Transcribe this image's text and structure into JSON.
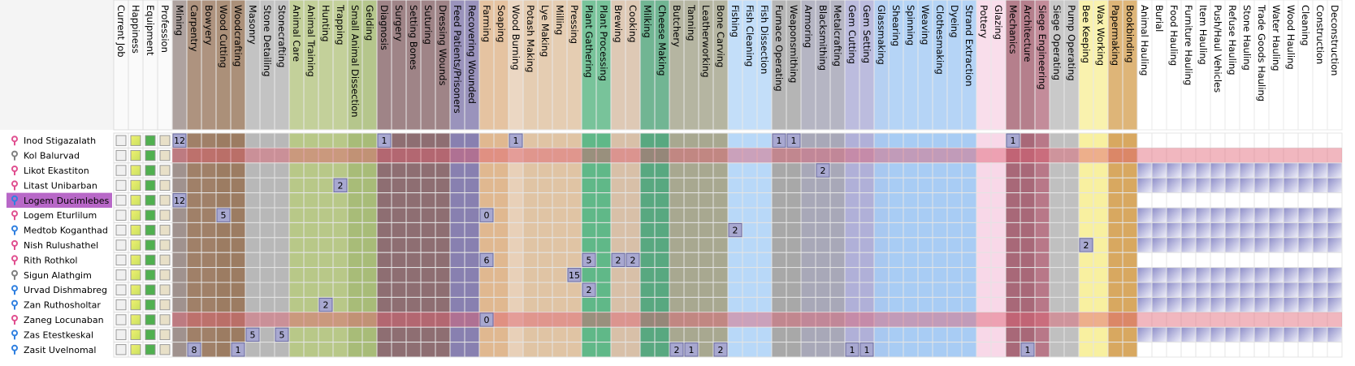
{
  "info_columns": [
    "Current Job",
    "Happiness",
    "Equipment",
    "Profession"
  ],
  "labors": [
    {
      "label": "Mining",
      "color": "#a0928e"
    },
    {
      "label": "Carpentry",
      "color": "#a08068"
    },
    {
      "label": "Bowyery",
      "color": "#a08068"
    },
    {
      "label": "Wood Cutting",
      "color": "#9c7c62"
    },
    {
      "label": "Woodcrafting",
      "color": "#9c7c62"
    },
    {
      "label": "Masonry",
      "color": "#b8b8b8"
    },
    {
      "label": "Stone Detailing",
      "color": "#b8b8b8"
    },
    {
      "label": "Stonecrafting",
      "color": "#b8b8b8"
    },
    {
      "label": "Animal Care",
      "color": "#b8c888"
    },
    {
      "label": "Animal Training",
      "color": "#b8c888"
    },
    {
      "label": "Hunting",
      "color": "#b8c888"
    },
    {
      "label": "Trapping",
      "color": "#b8c888"
    },
    {
      "label": "Small Animal Dissection",
      "color": "#a8bc78"
    },
    {
      "label": "Gelding",
      "color": "#a8bc78"
    },
    {
      "label": "Diagnosis",
      "color": "#8e6e72"
    },
    {
      "label": "Surgery",
      "color": "#8e6e72"
    },
    {
      "label": "Setting Bones",
      "color": "#8e6e72"
    },
    {
      "label": "Suturing",
      "color": "#8e6e72"
    },
    {
      "label": "Dressing Wounds",
      "color": "#8e6e72"
    },
    {
      "label": "Feed Patients/Prisoners",
      "color": "#8880b0"
    },
    {
      "label": "Recovering Wounded",
      "color": "#8880b0"
    },
    {
      "label": "Farming",
      "color": "#e0b890"
    },
    {
      "label": "Soaping",
      "color": "#e0b890"
    },
    {
      "label": "Wood Burning",
      "color": "#e8d0b8"
    },
    {
      "label": "Potash Making",
      "color": "#e0c4a4"
    },
    {
      "label": "Lye Making",
      "color": "#e0c4a4"
    },
    {
      "label": "Milling",
      "color": "#e0c4a4"
    },
    {
      "label": "Pressing",
      "color": "#e0c4a4"
    },
    {
      "label": "Plant Gathering",
      "color": "#60b888"
    },
    {
      "label": "Plant Processing",
      "color": "#60b888"
    },
    {
      "label": "Brewing",
      "color": "#d8c0a8"
    },
    {
      "label": "Cooking",
      "color": "#d8c0a8"
    },
    {
      "label": "Milking",
      "color": "#58a880"
    },
    {
      "label": "Cheese Making",
      "color": "#58a880"
    },
    {
      "label": "Butchery",
      "color": "#a8a890"
    },
    {
      "label": "Tanning",
      "color": "#a8a890"
    },
    {
      "label": "Leatherworking",
      "color": "#a8a890"
    },
    {
      "label": "Bone Carving",
      "color": "#a8a890"
    },
    {
      "label": "Fishing",
      "color": "#b8d8f8"
    },
    {
      "label": "Fish Cleaning",
      "color": "#b8d8f8"
    },
    {
      "label": "Fish Dissection",
      "color": "#b8d8f8"
    },
    {
      "label": "Furnace Operating",
      "color": "#a8a8a8"
    },
    {
      "label": "Weaponsmithing",
      "color": "#a8a8a8"
    },
    {
      "label": "Armoring",
      "color": "#a8a8b8"
    },
    {
      "label": "Blacksmithing",
      "color": "#a8a8b8"
    },
    {
      "label": "Metalcrafting",
      "color": "#a8a8b8"
    },
    {
      "label": "Gem Cutting",
      "color": "#b0b0d8"
    },
    {
      "label": "Gem Setting",
      "color": "#b0b0d8"
    },
    {
      "label": "Glassmaking",
      "color": "#a8c8f0"
    },
    {
      "label": "Shearing",
      "color": "#a8ccf4"
    },
    {
      "label": "Spinning",
      "color": "#a8ccf4"
    },
    {
      "label": "Weaving",
      "color": "#a8ccf4"
    },
    {
      "label": "Clothesmaking",
      "color": "#a8ccf4"
    },
    {
      "label": "Dyeing",
      "color": "#a8ccf4"
    },
    {
      "label": "Strand Extraction",
      "color": "#a8ccf4"
    },
    {
      "label": "Pottery",
      "color": "#f8d8e8"
    },
    {
      "label": "Glazing",
      "color": "#f8d8e8"
    },
    {
      "label": "Mechanics",
      "color": "#a86878"
    },
    {
      "label": "Architecture",
      "color": "#a86878"
    },
    {
      "label": "Siege Engineering",
      "color": "#b87888"
    },
    {
      "label": "Siege Operating",
      "color": "#c0c0c0"
    },
    {
      "label": "Pump Operating",
      "color": "#c0c0c0"
    },
    {
      "label": "Bee Keeping",
      "color": "#f8f0a0"
    },
    {
      "label": "Wax Working",
      "color": "#f8f0a0"
    },
    {
      "label": "Papermaking",
      "color": "#d8a860"
    },
    {
      "label": "Bookbinding",
      "color": "#d8a860"
    },
    {
      "label": "Animal Hauling",
      "color": "#ffffff"
    },
    {
      "label": "Burial",
      "color": "#ffffff"
    },
    {
      "label": "Food Hauling",
      "color": "#ffffff"
    },
    {
      "label": "Furniture Hauling",
      "color": "#ffffff"
    },
    {
      "label": "Item Hauling",
      "color": "#ffffff"
    },
    {
      "label": "Push/Haul Vehicles",
      "color": "#ffffff"
    },
    {
      "label": "Refuse Hauling",
      "color": "#ffffff"
    },
    {
      "label": "Stone Hauling",
      "color": "#ffffff"
    },
    {
      "label": "Trade Goods Hauling",
      "color": "#ffffff"
    },
    {
      "label": "Water Hauling",
      "color": "#ffffff"
    },
    {
      "label": "Wood Hauling",
      "color": "#ffffff"
    },
    {
      "label": "Cleaning",
      "color": "#ffffff"
    },
    {
      "label": "Construction",
      "color": "#ffffff"
    },
    {
      "label": "Deconstruction",
      "color": "#ffffff"
    }
  ],
  "rows": [
    {
      "name": "Inod Stigazalath",
      "gender": "female",
      "hauling": false,
      "skills": [
        {
          "labor": "Mining",
          "level": 12
        },
        {
          "labor": "Diagnosis",
          "level": 1
        },
        {
          "labor": "Wood Burning",
          "level": 1
        },
        {
          "labor": "Furnace Operating",
          "level": 1
        },
        {
          "labor": "Weaponsmithing",
          "level": 1
        },
        {
          "labor": "Mechanics",
          "level": 1
        }
      ]
    },
    {
      "name": "Kol Balurvad",
      "gender": "unknown",
      "hauling": false,
      "red": true,
      "skills": []
    },
    {
      "name": "Likot Ekastiton",
      "gender": "female",
      "hauling": true,
      "skills": [
        {
          "labor": "Blacksmithing",
          "level": 2
        }
      ]
    },
    {
      "name": "Litast Unibarban",
      "gender": "female",
      "hauling": true,
      "skills": [
        {
          "labor": "Trapping",
          "level": 2
        }
      ]
    },
    {
      "name": "Logem Ducimlebes",
      "gender": "male",
      "hauling": false,
      "selected": true,
      "skills": [
        {
          "labor": "Mining",
          "level": 12
        }
      ]
    },
    {
      "name": "Logem Eturlilum",
      "gender": "female",
      "hauling": true,
      "skills": [
        {
          "labor": "Wood Cutting",
          "level": 5
        },
        {
          "labor": "Farming",
          "level": 0
        }
      ]
    },
    {
      "name": "Medtob Koganthad",
      "gender": "male",
      "hauling": true,
      "skills": [
        {
          "labor": "Fishing",
          "level": 2
        }
      ]
    },
    {
      "name": "Nish Rulushathel",
      "gender": "female",
      "hauling": true,
      "skills": [
        {
          "labor": "Bee Keeping",
          "level": 2
        }
      ]
    },
    {
      "name": "Rith Rothkol",
      "gender": "female",
      "hauling": false,
      "skills": [
        {
          "labor": "Farming",
          "level": 6
        },
        {
          "labor": "Plant Gathering",
          "level": 5
        },
        {
          "labor": "Brewing",
          "level": 2
        },
        {
          "labor": "Cooking",
          "level": 2
        }
      ]
    },
    {
      "name": "Sigun Alathgim",
      "gender": "unknown",
      "hauling": true,
      "skills": [
        {
          "labor": "Pressing",
          "level": 15
        }
      ]
    },
    {
      "name": "Urvad Dishmabreg",
      "gender": "male",
      "hauling": true,
      "skills": [
        {
          "labor": "Plant Gathering",
          "level": 2
        }
      ]
    },
    {
      "name": "Zan Ruthosholtar",
      "gender": "male",
      "hauling": true,
      "skills": [
        {
          "labor": "Hunting",
          "level": 2
        }
      ]
    },
    {
      "name": "Zaneg Locunaban",
      "gender": "female",
      "hauling": false,
      "red": true,
      "skills": [
        {
          "labor": "Farming",
          "level": 0
        }
      ]
    },
    {
      "name": "Zas Etestkeskal",
      "gender": "male",
      "hauling": true,
      "skills": [
        {
          "labor": "Masonry",
          "level": 5
        },
        {
          "labor": "Stonecrafting",
          "level": 5
        }
      ]
    },
    {
      "name": "Zasit Uvelnomal",
      "gender": "male",
      "hauling": false,
      "skills": [
        {
          "labor": "Carpentry",
          "level": 8
        },
        {
          "labor": "Woodcrafting",
          "level": 1
        },
        {
          "labor": "Butchery",
          "level": 2
        },
        {
          "labor": "Tanning",
          "level": 1
        },
        {
          "labor": "Bone Carving",
          "level": 2
        },
        {
          "labor": "Gem Cutting",
          "level": 1
        },
        {
          "labor": "Gem Setting",
          "level": 1
        },
        {
          "labor": "Architecture",
          "level": 1
        }
      ]
    }
  ]
}
